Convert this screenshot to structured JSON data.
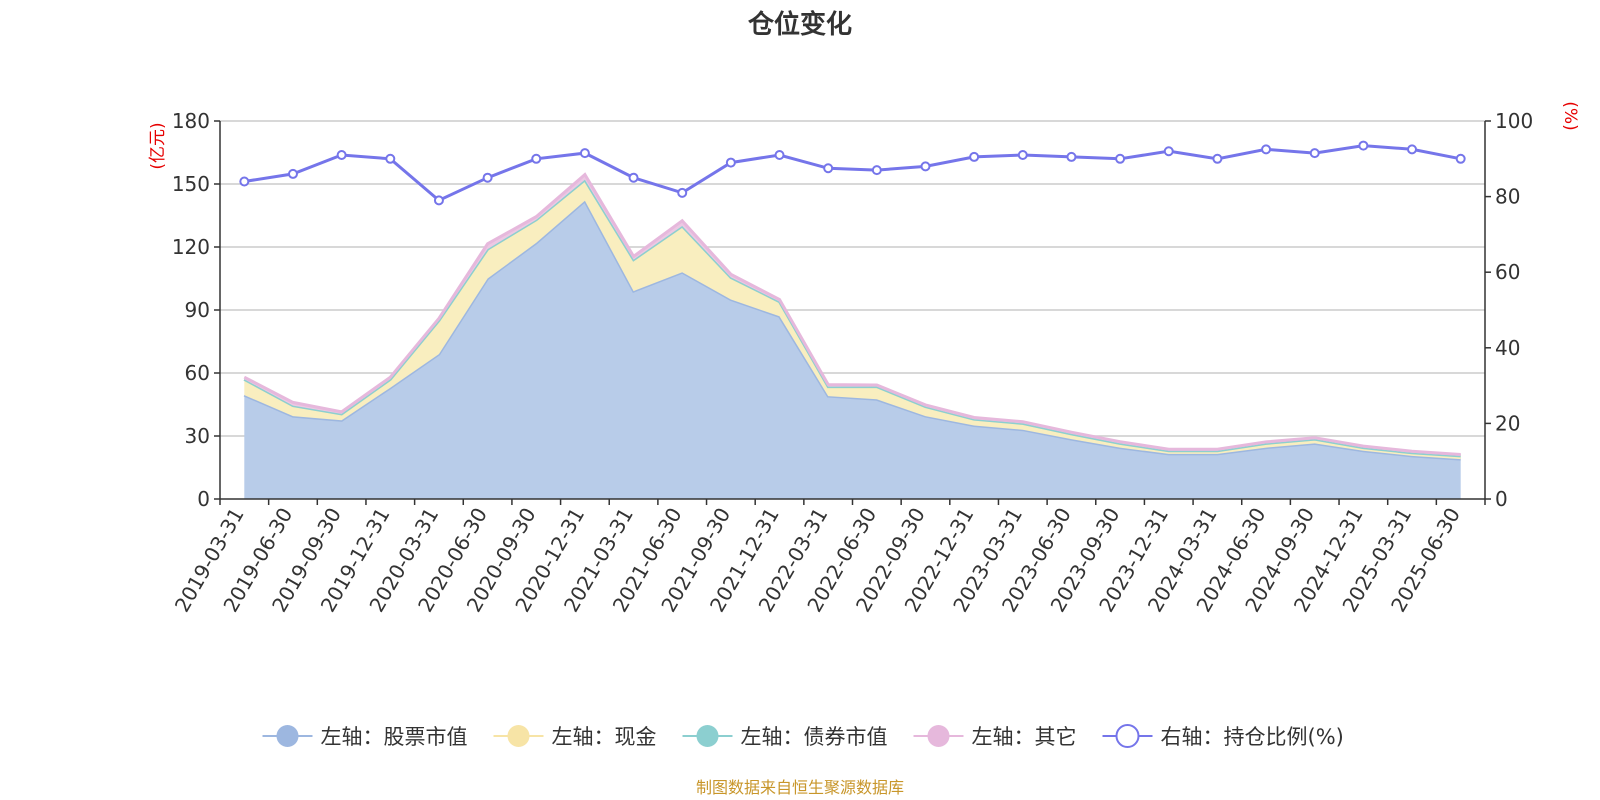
{
  "chart_data": {
    "type": "area",
    "title": "仓位变化",
    "left_axis": {
      "unit": "(亿元)",
      "ylim": [
        0,
        180
      ],
      "ticks": [
        0,
        30,
        60,
        90,
        120,
        150,
        180
      ]
    },
    "right_axis": {
      "unit": "(%)",
      "ylim": [
        0,
        100
      ],
      "ticks": [
        0,
        20,
        40,
        60,
        80,
        100
      ]
    },
    "categories": [
      "2019-03-31",
      "2019-06-30",
      "2019-09-30",
      "2019-12-31",
      "2020-03-31",
      "2020-06-30",
      "2020-09-30",
      "2020-12-31",
      "2021-03-31",
      "2021-06-30",
      "2021-09-30",
      "2021-12-31",
      "2022-03-31",
      "2022-06-30",
      "2022-09-30",
      "2022-12-31",
      "2023-03-31",
      "2023-06-30",
      "2023-09-30",
      "2023-12-31",
      "2024-03-31",
      "2024-06-30",
      "2024-09-30",
      "2024-12-31",
      "2025-03-31",
      "2025-06-30"
    ],
    "stacked": true,
    "grid": true,
    "legend_position": "bottom",
    "series": [
      {
        "name": "左轴：股票市值",
        "axis": "left",
        "kind": "area",
        "color": "#9db7e0",
        "fill": "#b8cce9",
        "values": [
          49.5,
          39.5,
          37.5,
          53,
          69,
          105,
          122,
          142,
          99,
          108,
          95,
          87,
          49,
          47.5,
          39.5,
          35,
          33,
          28.5,
          24.5,
          21.5,
          21.5,
          24.5,
          26.5,
          23,
          20.5,
          19
        ]
      },
      {
        "name": "左轴：现金",
        "axis": "left",
        "kind": "area",
        "color": "#f7e4a6",
        "fill": "#f9eebf",
        "values": [
          7.5,
          5,
          3,
          4,
          16,
          14,
          11,
          10,
          15,
          22,
          10.5,
          7,
          4.5,
          6,
          4.5,
          3,
          3,
          2.5,
          2,
          1.5,
          1.5,
          2,
          2,
          1.5,
          1.5,
          1.5
        ]
      },
      {
        "name": "左轴：债券市值",
        "axis": "left",
        "kind": "area",
        "color": "#8ccfd0",
        "fill": "#bfe3e3",
        "values": [
          0,
          0,
          0,
          0,
          0,
          0,
          0,
          0,
          0,
          0,
          0,
          0,
          0,
          0,
          0,
          0,
          0,
          0,
          0,
          0,
          0,
          0,
          0,
          0,
          0,
          0
        ]
      },
      {
        "name": "左轴：其它",
        "axis": "left",
        "kind": "area",
        "color": "#e6b8dc",
        "fill": "#ecc8e3",
        "values": [
          1,
          1.5,
          1,
          1,
          1,
          2.5,
          1.5,
          2.5,
          1.5,
          2.5,
          1.5,
          1,
          1,
          0.8,
          0.8,
          0.8,
          0.8,
          0.8,
          0.8,
          0.7,
          0.7,
          0.7,
          0.7,
          0.7,
          0.7,
          0.7
        ]
      },
      {
        "name": "右轴：持仓比例(%)",
        "axis": "right",
        "kind": "line",
        "color": "#7575ea",
        "values": [
          84,
          86,
          91,
          90,
          79,
          85,
          90,
          91.5,
          85,
          81,
          89,
          91,
          87.5,
          87,
          88,
          90.5,
          91,
          90.5,
          90,
          92,
          90,
          92.5,
          91.5,
          93.5,
          92.5,
          90
        ]
      }
    ]
  },
  "source_text": "制图数据来自恒生聚源数据库"
}
